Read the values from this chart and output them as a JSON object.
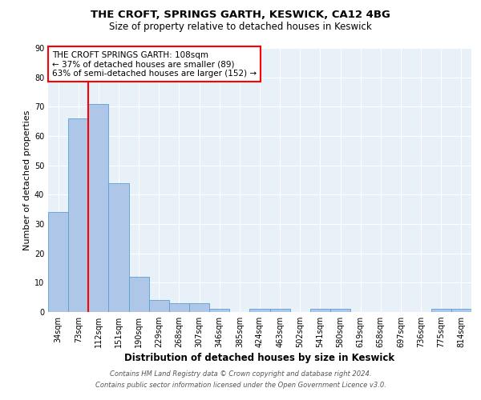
{
  "title": "THE CROFT, SPRINGS GARTH, KESWICK, CA12 4BG",
  "subtitle": "Size of property relative to detached houses in Keswick",
  "xlabel": "Distribution of detached houses by size in Keswick",
  "ylabel": "Number of detached properties",
  "footnote1": "Contains HM Land Registry data © Crown copyright and database right 2024.",
  "footnote2": "Contains public sector information licensed under the Open Government Licence v3.0.",
  "bin_labels": [
    "34sqm",
    "73sqm",
    "112sqm",
    "151sqm",
    "190sqm",
    "229sqm",
    "268sqm",
    "307sqm",
    "346sqm",
    "385sqm",
    "424sqm",
    "463sqm",
    "502sqm",
    "541sqm",
    "580sqm",
    "619sqm",
    "658sqm",
    "697sqm",
    "736sqm",
    "775sqm",
    "814sqm"
  ],
  "bar_values": [
    34,
    66,
    71,
    44,
    12,
    4,
    3,
    3,
    1,
    0,
    1,
    1,
    0,
    1,
    1,
    0,
    0,
    0,
    0,
    1,
    1
  ],
  "bar_color": "#aec6e8",
  "bar_edge_color": "#5a9fd4",
  "vline_x": 1.5,
  "vline_color": "red",
  "annotation_box_text": "THE CROFT SPRINGS GARTH: 108sqm\n← 37% of detached houses are smaller (89)\n63% of semi-detached houses are larger (152) →",
  "annotation_box_color": "red",
  "annotation_box_facecolor": "white",
  "ylim": [
    0,
    90
  ],
  "yticks": [
    0,
    10,
    20,
    30,
    40,
    50,
    60,
    70,
    80,
    90
  ],
  "bg_color": "#e8f0f8",
  "grid_color": "white",
  "title_fontsize": 9.5,
  "subtitle_fontsize": 8.5,
  "xlabel_fontsize": 8.5,
  "ylabel_fontsize": 8,
  "tick_fontsize": 7,
  "annot_fontsize": 7.5,
  "footnote_fontsize": 6
}
